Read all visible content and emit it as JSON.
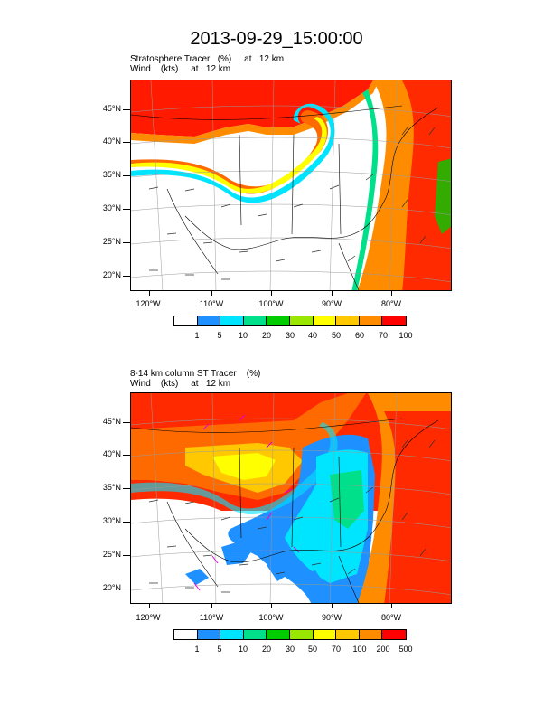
{
  "title": "2013-09-29_15:00:00",
  "panels": [
    {
      "line1": "Stratosphere Tracer   (%)     at   12 km",
      "line2": "Wind    (kts)     at   12 km",
      "colorbar_labels": [
        "1",
        "5",
        "10",
        "20",
        "30",
        "40",
        "50",
        "60",
        "70",
        "100"
      ]
    },
    {
      "line1": "8-14 km column ST Tracer    (%)",
      "line2": "Wind    (kts)     at   12 km",
      "colorbar_labels": [
        "1",
        "5",
        "10",
        "20",
        "30",
        "50",
        "70",
        "100",
        "200",
        "500"
      ]
    }
  ],
  "lat_labels": [
    "45°N",
    "40°N",
    "35°N",
    "30°N",
    "25°N",
    "20°N"
  ],
  "lon_labels": [
    "120°W",
    "110°W",
    "100°W",
    "90°W",
    "80°W"
  ],
  "colors": [
    "#ffffff",
    "#1e90ff",
    "#00e5ff",
    "#00e08a",
    "#00cc00",
    "#99e600",
    "#ffff00",
    "#ffc800",
    "#ff8c00",
    "#ff4500",
    "#ff0000"
  ]
}
